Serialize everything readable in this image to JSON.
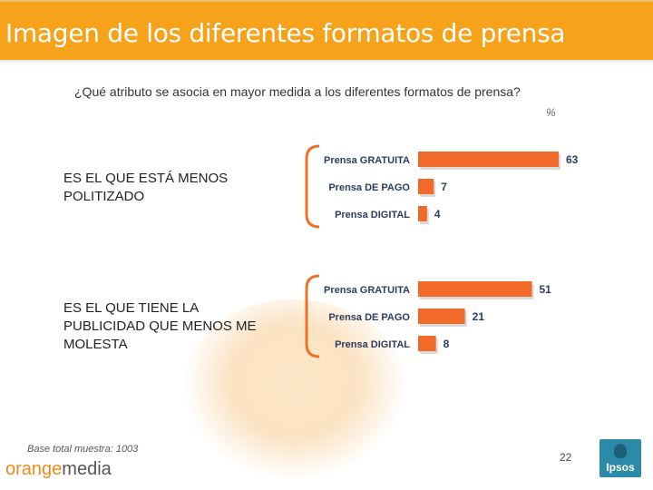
{
  "header": {
    "title": "Imagen de los diferentes formatos de prensa"
  },
  "question": "¿Qué atributo se asocia en mayor medida a los diferentes formatos de prensa?",
  "unit": "%",
  "groups": [
    {
      "label_lines": [
        "ES EL QUE ESTÁ MENOS",
        "POLITIZADO"
      ]
    },
    {
      "label_lines": [
        "ES EL QUE TIENE LA",
        "PUBLICIDAD QUE MENOS ME",
        "MOLESTA"
      ]
    }
  ],
  "footer": {
    "base": "Base total muestra: 1003",
    "logo_left_a": "orange",
    "logo_left_b": "media",
    "page_number": "22",
    "logo_right": "Ipsos"
  },
  "colors": {
    "header": "#f7a21b",
    "bar": "#f26a2a",
    "bracket": "#e8742a"
  },
  "chart_data": [
    {
      "type": "bar",
      "categories": [
        "Prensa GRATUITA",
        "Prensa DE PAGO",
        "Prensa DIGITAL"
      ],
      "values": [
        63,
        7,
        4
      ],
      "title": "ES EL QUE ESTÁ MENOS POLITIZADO",
      "xlim": [
        0,
        63
      ]
    },
    {
      "type": "bar",
      "categories": [
        "Prensa GRATUITA",
        "Prensa DE PAGO",
        "Prensa DIGITAL"
      ],
      "values": [
        51,
        21,
        8
      ],
      "title": "ES EL QUE TIENE LA PUBLICIDAD QUE MENOS ME MOLESTA",
      "xlim": [
        0,
        63
      ]
    }
  ]
}
